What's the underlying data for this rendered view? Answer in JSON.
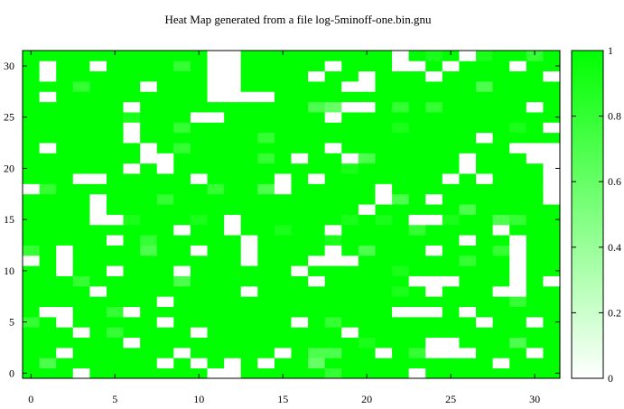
{
  "chart_data": {
    "type": "heatmap",
    "title": "Heat Map generated from a file log-5minoff-one.bin.gnu",
    "xlabel": "",
    "ylabel": "",
    "xlim": [
      0,
      31
    ],
    "ylim": [
      0,
      31
    ],
    "x_ticks": [
      0,
      5,
      10,
      15,
      20,
      25,
      30
    ],
    "y_ticks": [
      0,
      5,
      10,
      15,
      20,
      25,
      30
    ],
    "colorbar_ticks": [
      0,
      0.2,
      0.4,
      0.6,
      0.8,
      1
    ],
    "colorbar_range": [
      0,
      1
    ],
    "colors": {
      "low": "#ffffff",
      "high": "#00ff00"
    },
    "value_note": "cell values 1 unless listed as exceptions (row = y from bottom, col = x)",
    "default_value": 1,
    "exceptions": [
      [
        31,
        11,
        0
      ],
      [
        31,
        12,
        0
      ],
      [
        31,
        22,
        0
      ],
      [
        31,
        24,
        0.9
      ],
      [
        31,
        26,
        0
      ],
      [
        31,
        27,
        0.9
      ],
      [
        31,
        30,
        0.8
      ],
      [
        30,
        1,
        0
      ],
      [
        30,
        4,
        0
      ],
      [
        30,
        9,
        0.8
      ],
      [
        30,
        11,
        0
      ],
      [
        30,
        12,
        0
      ],
      [
        30,
        18,
        0
      ],
      [
        30,
        22,
        0
      ],
      [
        30,
        23,
        0
      ],
      [
        30,
        25,
        0
      ],
      [
        30,
        29,
        0
      ],
      [
        29,
        1,
        0
      ],
      [
        29,
        11,
        0
      ],
      [
        29,
        12,
        0
      ],
      [
        29,
        17,
        0
      ],
      [
        29,
        20,
        0
      ],
      [
        29,
        24,
        0
      ],
      [
        29,
        31,
        0
      ],
      [
        28,
        3,
        0.8
      ],
      [
        28,
        7,
        0
      ],
      [
        28,
        11,
        0
      ],
      [
        28,
        12,
        0
      ],
      [
        28,
        19,
        0
      ],
      [
        28,
        20,
        0
      ],
      [
        28,
        27,
        0.7
      ],
      [
        27,
        1,
        0
      ],
      [
        27,
        11,
        0
      ],
      [
        27,
        12,
        0
      ],
      [
        27,
        13,
        0
      ],
      [
        27,
        14,
        0
      ],
      [
        26,
        6,
        0
      ],
      [
        26,
        17,
        0.7
      ],
      [
        26,
        18,
        0.6
      ],
      [
        26,
        19,
        0
      ],
      [
        26,
        20,
        0
      ],
      [
        26,
        22,
        0.8
      ],
      [
        26,
        24,
        0.8
      ],
      [
        26,
        30,
        0
      ],
      [
        25,
        6,
        0.9
      ],
      [
        25,
        10,
        0
      ],
      [
        25,
        11,
        0
      ],
      [
        25,
        18,
        0
      ],
      [
        24,
        6,
        0
      ],
      [
        24,
        9,
        0.8
      ],
      [
        24,
        22,
        0.9
      ],
      [
        24,
        29,
        0.9
      ],
      [
        24,
        31,
        0
      ],
      [
        23,
        6,
        0
      ],
      [
        23,
        14,
        0.8
      ],
      [
        23,
        27,
        0
      ],
      [
        22,
        1,
        0
      ],
      [
        22,
        7,
        0
      ],
      [
        22,
        9,
        0.8
      ],
      [
        22,
        18,
        0
      ],
      [
        22,
        29,
        0
      ],
      [
        22,
        30,
        0
      ],
      [
        22,
        31,
        0
      ],
      [
        21,
        7,
        0
      ],
      [
        21,
        8,
        0
      ],
      [
        21,
        14,
        0.8
      ],
      [
        21,
        16,
        0
      ],
      [
        21,
        19,
        0
      ],
      [
        21,
        20,
        0.7
      ],
      [
        21,
        26,
        0
      ],
      [
        21,
        30,
        0
      ],
      [
        21,
        31,
        0
      ],
      [
        20,
        6,
        0
      ],
      [
        20,
        8,
        0
      ],
      [
        20,
        19,
        0.9
      ],
      [
        20,
        26,
        0
      ],
      [
        20,
        31,
        0
      ],
      [
        19,
        3,
        0
      ],
      [
        19,
        4,
        0
      ],
      [
        19,
        10,
        0
      ],
      [
        19,
        15,
        0
      ],
      [
        19,
        17,
        0
      ],
      [
        19,
        25,
        0
      ],
      [
        19,
        27,
        0
      ],
      [
        19,
        31,
        0
      ],
      [
        18,
        0,
        0
      ],
      [
        18,
        1,
        0.8
      ],
      [
        18,
        11,
        0.8
      ],
      [
        18,
        14,
        0.7
      ],
      [
        18,
        15,
        0
      ],
      [
        18,
        21,
        0
      ],
      [
        18,
        31,
        0
      ],
      [
        17,
        4,
        0
      ],
      [
        17,
        8,
        0.8
      ],
      [
        17,
        21,
        0
      ],
      [
        17,
        22,
        0.7
      ],
      [
        17,
        24,
        0
      ],
      [
        17,
        31,
        0
      ],
      [
        16,
        4,
        0
      ],
      [
        16,
        20,
        0
      ],
      [
        16,
        26,
        0.7
      ],
      [
        15,
        4,
        0
      ],
      [
        15,
        5,
        0
      ],
      [
        15,
        6,
        0.9
      ],
      [
        15,
        10,
        0.9
      ],
      [
        15,
        12,
        0
      ],
      [
        15,
        19,
        0.9
      ],
      [
        15,
        21,
        0.9
      ],
      [
        15,
        23,
        0
      ],
      [
        15,
        24,
        0
      ],
      [
        15,
        25,
        0.9
      ],
      [
        15,
        28,
        0.7
      ],
      [
        15,
        29,
        0.8
      ],
      [
        14,
        9,
        0
      ],
      [
        14,
        12,
        0
      ],
      [
        14,
        15,
        0.9
      ],
      [
        14,
        18,
        0
      ],
      [
        14,
        23,
        0.8
      ],
      [
        14,
        28,
        0
      ],
      [
        13,
        5,
        0
      ],
      [
        13,
        7,
        0.8
      ],
      [
        13,
        13,
        0
      ],
      [
        13,
        18,
        0.9
      ],
      [
        13,
        26,
        0
      ],
      [
        13,
        29,
        0
      ],
      [
        12,
        0,
        0.8
      ],
      [
        12,
        2,
        0
      ],
      [
        12,
        7,
        0.7
      ],
      [
        12,
        10,
        0
      ],
      [
        12,
        13,
        0
      ],
      [
        12,
        18,
        0
      ],
      [
        12,
        20,
        0.7
      ],
      [
        12,
        24,
        0
      ],
      [
        12,
        28,
        0.8
      ],
      [
        12,
        29,
        0
      ],
      [
        11,
        0,
        0
      ],
      [
        11,
        2,
        0
      ],
      [
        11,
        13,
        0
      ],
      [
        11,
        17,
        0
      ],
      [
        11,
        18,
        0
      ],
      [
        11,
        19,
        0
      ],
      [
        11,
        26,
        0.8
      ],
      [
        11,
        29,
        0
      ],
      [
        10,
        2,
        0
      ],
      [
        10,
        5,
        0
      ],
      [
        10,
        9,
        0
      ],
      [
        10,
        16,
        0
      ],
      [
        10,
        22,
        0.9
      ],
      [
        10,
        29,
        0
      ],
      [
        9,
        3,
        0.8
      ],
      [
        9,
        9,
        0.7
      ],
      [
        9,
        17,
        0
      ],
      [
        9,
        23,
        0
      ],
      [
        9,
        24,
        0
      ],
      [
        9,
        25,
        0
      ],
      [
        9,
        29,
        0
      ],
      [
        9,
        31,
        0
      ],
      [
        8,
        4,
        0
      ],
      [
        8,
        13,
        0
      ],
      [
        8,
        22,
        0.9
      ],
      [
        8,
        24,
        0
      ],
      [
        8,
        28,
        0
      ],
      [
        8,
        29,
        0
      ],
      [
        7,
        8,
        0
      ],
      [
        7,
        29,
        0.8
      ],
      [
        6,
        1,
        0
      ],
      [
        6,
        2,
        0
      ],
      [
        6,
        5,
        0.8
      ],
      [
        6,
        6,
        0
      ],
      [
        6,
        22,
        0
      ],
      [
        6,
        23,
        0
      ],
      [
        6,
        24,
        0
      ],
      [
        6,
        26,
        0
      ],
      [
        5,
        0,
        0.8
      ],
      [
        5,
        2,
        0
      ],
      [
        5,
        8,
        0
      ],
      [
        5,
        16,
        0
      ],
      [
        5,
        18,
        0.8
      ],
      [
        5,
        27,
        0
      ],
      [
        5,
        30,
        0
      ],
      [
        4,
        3,
        0
      ],
      [
        4,
        5,
        0.8
      ],
      [
        4,
        10,
        0
      ],
      [
        4,
        19,
        0
      ],
      [
        3,
        6,
        0
      ],
      [
        3,
        20,
        0.9
      ],
      [
        3,
        24,
        0
      ],
      [
        3,
        25,
        0
      ],
      [
        3,
        29,
        0.7
      ],
      [
        2,
        2,
        0
      ],
      [
        2,
        9,
        0
      ],
      [
        2,
        15,
        0
      ],
      [
        2,
        17,
        0.7
      ],
      [
        2,
        18,
        0.7
      ],
      [
        2,
        21,
        0
      ],
      [
        2,
        23,
        0.8
      ],
      [
        2,
        24,
        0
      ],
      [
        2,
        25,
        0
      ],
      [
        2,
        26,
        0
      ],
      [
        2,
        30,
        0
      ],
      [
        1,
        1,
        0.7
      ],
      [
        1,
        8,
        0
      ],
      [
        1,
        10,
        0
      ],
      [
        1,
        12,
        0
      ],
      [
        1,
        14,
        0
      ],
      [
        1,
        17,
        0.6
      ],
      [
        1,
        28,
        0
      ],
      [
        0,
        3,
        0
      ],
      [
        0,
        11,
        0
      ],
      [
        0,
        12,
        0
      ],
      [
        0,
        18,
        0.8
      ],
      [
        0,
        23,
        0
      ]
    ]
  }
}
